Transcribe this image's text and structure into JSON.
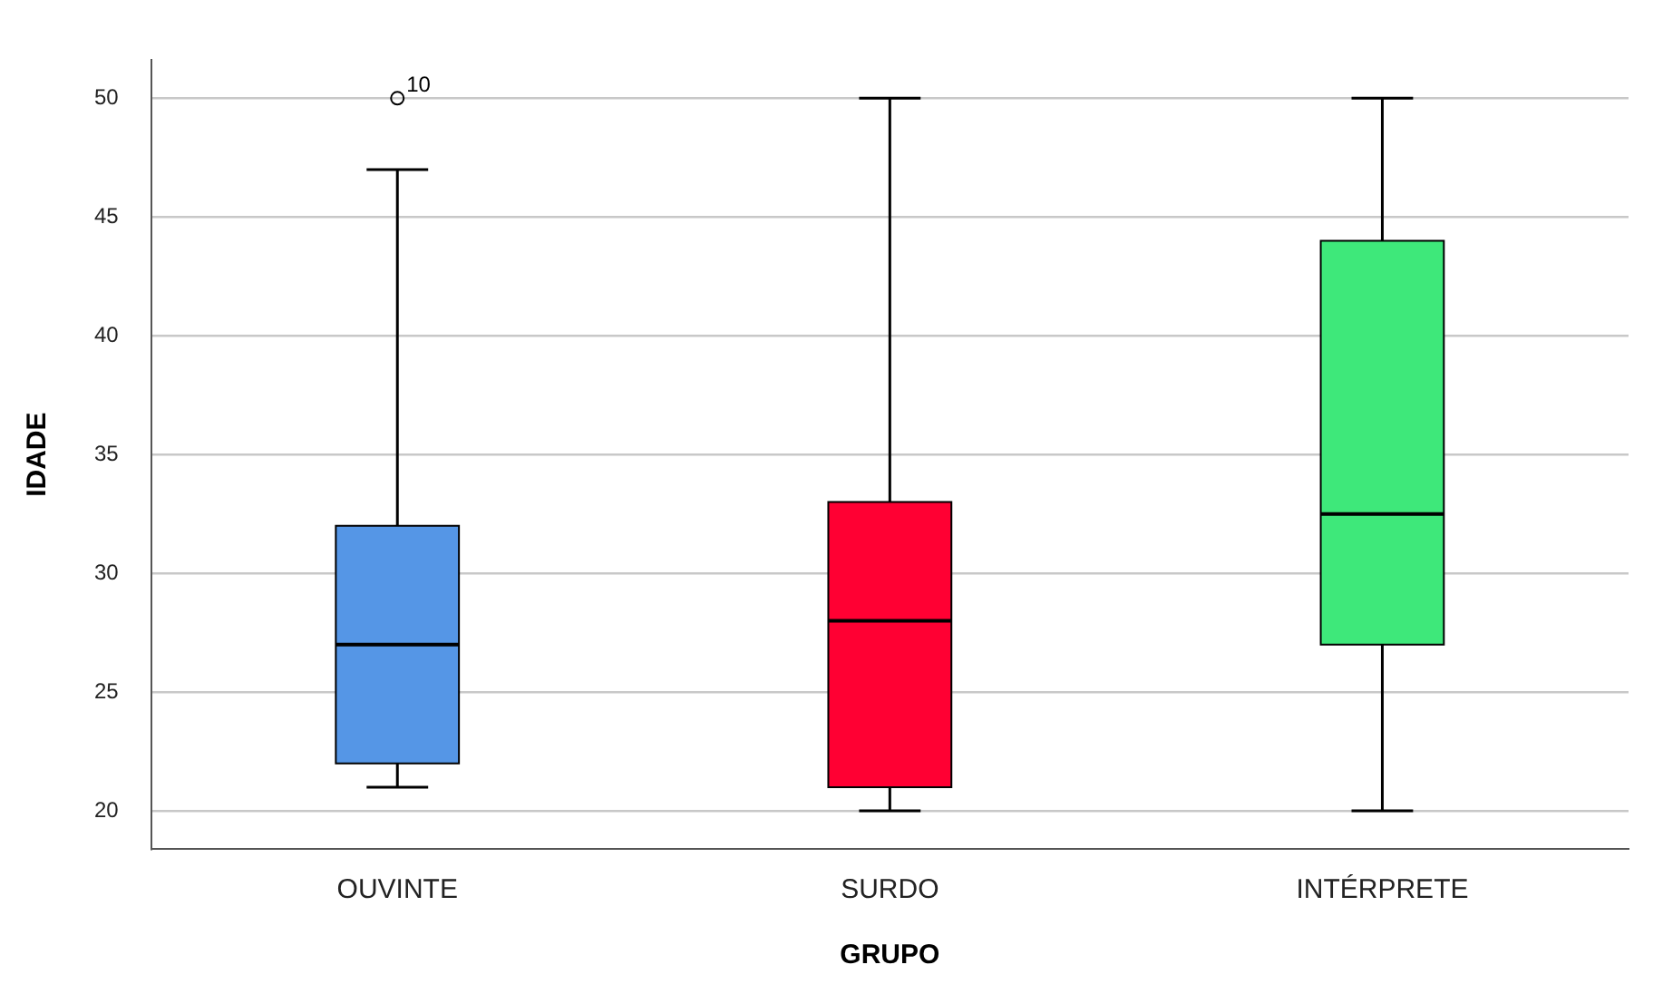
{
  "chart_data": {
    "type": "box",
    "xlabel": "GRUPO",
    "ylabel": "IDADE",
    "categories": [
      "OUVINTE",
      "SURDO",
      "INTÉRPRETE"
    ],
    "colors": [
      "#5596e6",
      "#ff0033",
      "#3ee87a"
    ],
    "boxes": [
      {
        "low": 21,
        "q1": 22,
        "median": 27,
        "q3": 32,
        "high": 47,
        "outliers": [
          50
        ]
      },
      {
        "low": 20,
        "q1": 21,
        "median": 28,
        "q3": 33,
        "high": 50
      },
      {
        "low": 20,
        "q1": 27,
        "median": 32.5,
        "q3": 44,
        "high": 50
      }
    ],
    "ylim": [
      18.4,
      51.6
    ],
    "yticks": [
      20,
      25,
      30,
      35,
      40,
      45,
      50
    ],
    "grid": "y",
    "legend": false,
    "annotations": [
      "10"
    ]
  }
}
